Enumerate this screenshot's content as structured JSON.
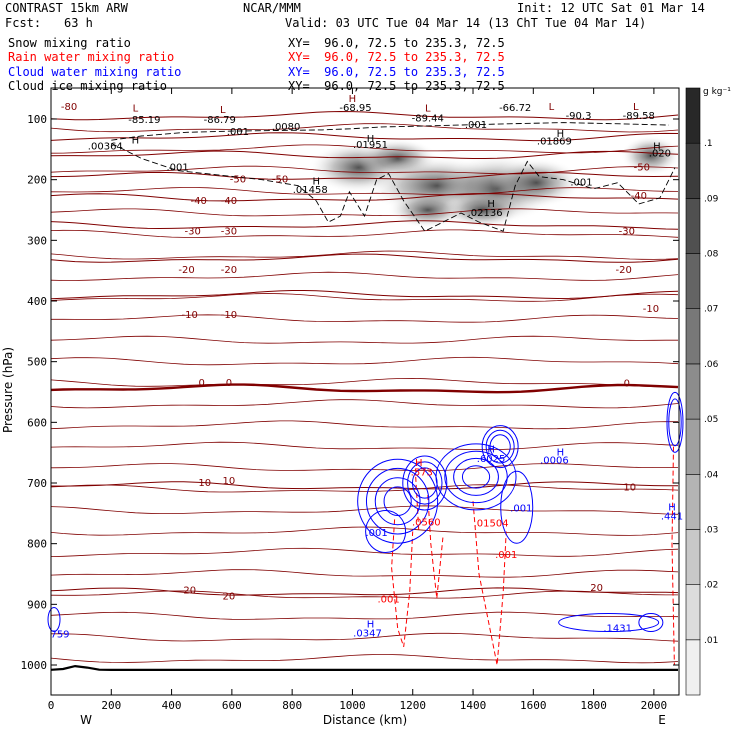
{
  "header": {
    "model": "CONTRAST 15km ARW",
    "org": "NCAR/MMM",
    "init": "Init: 12 UTC Sat 01 Mar 14",
    "fcst_label": "Fcst:",
    "fcst_value": "63 h",
    "valid": "Valid: 03 UTC Tue 04 Mar 14 (13 ChT Tue 04 Mar 14)",
    "fields": [
      {
        "name": "Snow mixing ratio",
        "xy": "XY=  96.0, 72.5 to 235.3, 72.5",
        "color": "#000000"
      },
      {
        "name": "Rain water mixing ratio",
        "xy": "XY=  96.0, 72.5 to 235.3, 72.5",
        "color": "#ff0000"
      },
      {
        "name": "Cloud water mixing ratio",
        "xy": "XY=  96.0, 72.5 to 235.3, 72.5",
        "color": "#0000ff"
      },
      {
        "name": "Cloud ice mixing ratio",
        "xy": "XY=  96.0, 72.5 to 235.3, 72.5",
        "color": "#000000"
      }
    ]
  },
  "chart_data": {
    "type": "cross-section",
    "xlabel": "Distance (km)",
    "ylabel": "Pressure (hPa)",
    "x_ticks": [
      0,
      200,
      400,
      600,
      800,
      1000,
      1200,
      1400,
      1600,
      1800,
      2000
    ],
    "y_ticks": [
      100,
      200,
      300,
      400,
      500,
      600,
      700,
      800,
      900,
      1000
    ],
    "xlim": [
      0,
      2080
    ],
    "ylim": [
      1045,
      50
    ],
    "west_label": "W",
    "east_label": "E",
    "temperature_isotherms": [
      {
        "value": -80,
        "p": 95
      },
      {
        "value": -70,
        "p": 130
      },
      {
        "value": -60,
        "p": 160
      },
      {
        "value": -50,
        "p": 195
      },
      {
        "value": -40,
        "p": 230
      },
      {
        "value": -30,
        "p": 275
      },
      {
        "value": -20,
        "p": 330
      },
      {
        "value": -10,
        "p": 390
      },
      {
        "value": 0,
        "p": 545
      },
      {
        "value": 10,
        "p": 705
      },
      {
        "value": 20,
        "p": 880
      }
    ],
    "contour_labels": [
      {
        "text": "-80",
        "x": 60,
        "p": 85,
        "color": "#800000"
      },
      {
        "text": "-85.19",
        "x": 310,
        "p": 107,
        "color": "#000000"
      },
      {
        "text": "-86.79",
        "x": 560,
        "p": 107,
        "color": "#000000"
      },
      {
        "text": "-68.95",
        "x": 1010,
        "p": 87,
        "color": "#000000"
      },
      {
        "text": "-89.44",
        "x": 1250,
        "p": 104,
        "color": "#000000"
      },
      {
        "text": "-66.72",
        "x": 1540,
        "p": 87,
        "color": "#000000"
      },
      {
        "text": "-90.3",
        "x": 1750,
        "p": 100,
        "color": "#000000"
      },
      {
        "text": "-89.58",
        "x": 1950,
        "p": 100,
        "color": "#000000"
      },
      {
        "text": ".00364",
        "x": 180,
        "p": 150,
        "color": "#000000"
      },
      {
        "text": ".001",
        "x": 620,
        "p": 126,
        "color": "#000000"
      },
      {
        "text": ".0080",
        "x": 780,
        "p": 118,
        "color": "#000000"
      },
      {
        "text": ".001",
        "x": 1410,
        "p": 115,
        "color": "#000000"
      },
      {
        "text": ".01951",
        "x": 1060,
        "p": 148,
        "color": "#000000"
      },
      {
        "text": ".01869",
        "x": 1670,
        "p": 142,
        "color": "#000000"
      },
      {
        "text": ".020",
        "x": 2020,
        "p": 162,
        "color": "#000000"
      },
      {
        "text": ".001",
        "x": 420,
        "p": 185,
        "color": "#000000"
      },
      {
        "text": ".01458",
        "x": 860,
        "p": 222,
        "color": "#000000"
      },
      {
        "text": ".02136",
        "x": 1440,
        "p": 260,
        "color": "#000000"
      },
      {
        "text": ".001",
        "x": 1760,
        "p": 210,
        "color": "#000000"
      },
      {
        "text": "-50",
        "x": 620,
        "p": 205,
        "color": "#800000"
      },
      {
        "text": "-50",
        "x": 760,
        "p": 205,
        "color": "#800000"
      },
      {
        "text": "-50",
        "x": 1960,
        "p": 185,
        "color": "#800000"
      },
      {
        "text": "-40",
        "x": 490,
        "p": 240,
        "color": "#800000"
      },
      {
        "text": "-40",
        "x": 590,
        "p": 240,
        "color": "#800000"
      },
      {
        "text": "-40",
        "x": 1950,
        "p": 232,
        "color": "#800000"
      },
      {
        "text": "-30",
        "x": 470,
        "p": 290,
        "color": "#800000"
      },
      {
        "text": "-30",
        "x": 590,
        "p": 290,
        "color": "#800000"
      },
      {
        "text": "-30",
        "x": 1910,
        "p": 290,
        "color": "#800000"
      },
      {
        "text": "-20",
        "x": 450,
        "p": 354,
        "color": "#800000"
      },
      {
        "text": "-20",
        "x": 590,
        "p": 354,
        "color": "#800000"
      },
      {
        "text": "-20",
        "x": 1900,
        "p": 354,
        "color": "#800000"
      },
      {
        "text": "-10",
        "x": 460,
        "p": 428,
        "color": "#800000"
      },
      {
        "text": "-10",
        "x": 590,
        "p": 428,
        "color": "#800000"
      },
      {
        "text": "-10",
        "x": 1990,
        "p": 418,
        "color": "#800000"
      },
      {
        "text": "0",
        "x": 500,
        "p": 540,
        "color": "#800000"
      },
      {
        "text": "0",
        "x": 590,
        "p": 540,
        "color": "#800000"
      },
      {
        "text": "0",
        "x": 1910,
        "p": 541,
        "color": "#800000"
      },
      {
        "text": "10",
        "x": 510,
        "p": 705,
        "color": "#800000"
      },
      {
        "text": "10",
        "x": 590,
        "p": 702,
        "color": "#800000"
      },
      {
        "text": "10",
        "x": 1920,
        "p": 712,
        "color": "#800000"
      },
      {
        "text": "20",
        "x": 460,
        "p": 882,
        "color": "#800000"
      },
      {
        "text": "20",
        "x": 590,
        "p": 892,
        "color": "#800000"
      },
      {
        "text": "20",
        "x": 1810,
        "p": 878,
        "color": "#800000"
      },
      {
        "text": ".573",
        "x": 1230,
        "p": 688,
        "color": "#ff0000"
      },
      {
        "text": ".0560",
        "x": 1245,
        "p": 770,
        "color": "#ff0000"
      },
      {
        "text": ".01504",
        "x": 1460,
        "p": 772,
        "color": "#ff0000"
      },
      {
        "text": ".001",
        "x": 1510,
        "p": 824,
        "color": "#ff0000"
      },
      {
        "text": ".001",
        "x": 1120,
        "p": 897,
        "color": "#ff0000"
      },
      {
        "text": ".6025",
        "x": 1460,
        "p": 665,
        "color": "#0000ff"
      },
      {
        "text": ".0006",
        "x": 1670,
        "p": 668,
        "color": "#0000ff"
      },
      {
        "text": ".001",
        "x": 1560,
        "p": 747,
        "color": "#0000ff"
      },
      {
        "text": ".001",
        "x": 1080,
        "p": 787,
        "color": "#0000ff"
      },
      {
        "text": ".0347",
        "x": 1050,
        "p": 953,
        "color": "#0000ff"
      },
      {
        "text": ".1431",
        "x": 1880,
        "p": 945,
        "color": "#0000ff"
      },
      {
        "text": ".441",
        "x": 2060,
        "p": 760,
        "color": "#0000ff"
      },
      {
        "text": "759",
        "x": 30,
        "p": 955,
        "color": "#0000ff"
      }
    ],
    "extrema_markers": [
      {
        "text": "L",
        "x": 280,
        "p": 88,
        "color": "#800000"
      },
      {
        "text": "L",
        "x": 570,
        "p": 90,
        "color": "#800000"
      },
      {
        "text": "H",
        "x": 1000,
        "p": 72,
        "color": "#800000"
      },
      {
        "text": "L",
        "x": 1250,
        "p": 88,
        "color": "#800000"
      },
      {
        "text": "L",
        "x": 1660,
        "p": 85,
        "color": "#800000"
      },
      {
        "text": "L",
        "x": 1940,
        "p": 85,
        "color": "#800000"
      },
      {
        "text": "H",
        "x": 280,
        "p": 140,
        "color": "#000000"
      },
      {
        "text": "H",
        "x": 1060,
        "p": 138,
        "color": "#000000"
      },
      {
        "text": "H",
        "x": 1690,
        "p": 130,
        "color": "#000000"
      },
      {
        "text": "H",
        "x": 2010,
        "p": 150,
        "color": "#000000"
      },
      {
        "text": "H",
        "x": 880,
        "p": 208,
        "color": "#000000"
      },
      {
        "text": "H",
        "x": 1460,
        "p": 245,
        "color": "#000000"
      },
      {
        "text": "H",
        "x": 1220,
        "p": 672,
        "color": "#ff0000"
      },
      {
        "text": "H",
        "x": 1460,
        "p": 650,
        "color": "#0000ff"
      },
      {
        "text": "H",
        "x": 1690,
        "p": 655,
        "color": "#0000ff"
      },
      {
        "text": "H",
        "x": 1060,
        "p": 938,
        "color": "#0000ff"
      },
      {
        "text": "H",
        "x": 2060,
        "p": 745,
        "color": "#0000ff"
      }
    ],
    "colorbar": {
      "label": "g kg⁻¹",
      "levels": [
        ".01",
        ".02",
        ".03",
        ".04",
        ".05",
        ".06",
        ".07",
        ".08",
        ".09",
        ".1"
      ]
    }
  }
}
